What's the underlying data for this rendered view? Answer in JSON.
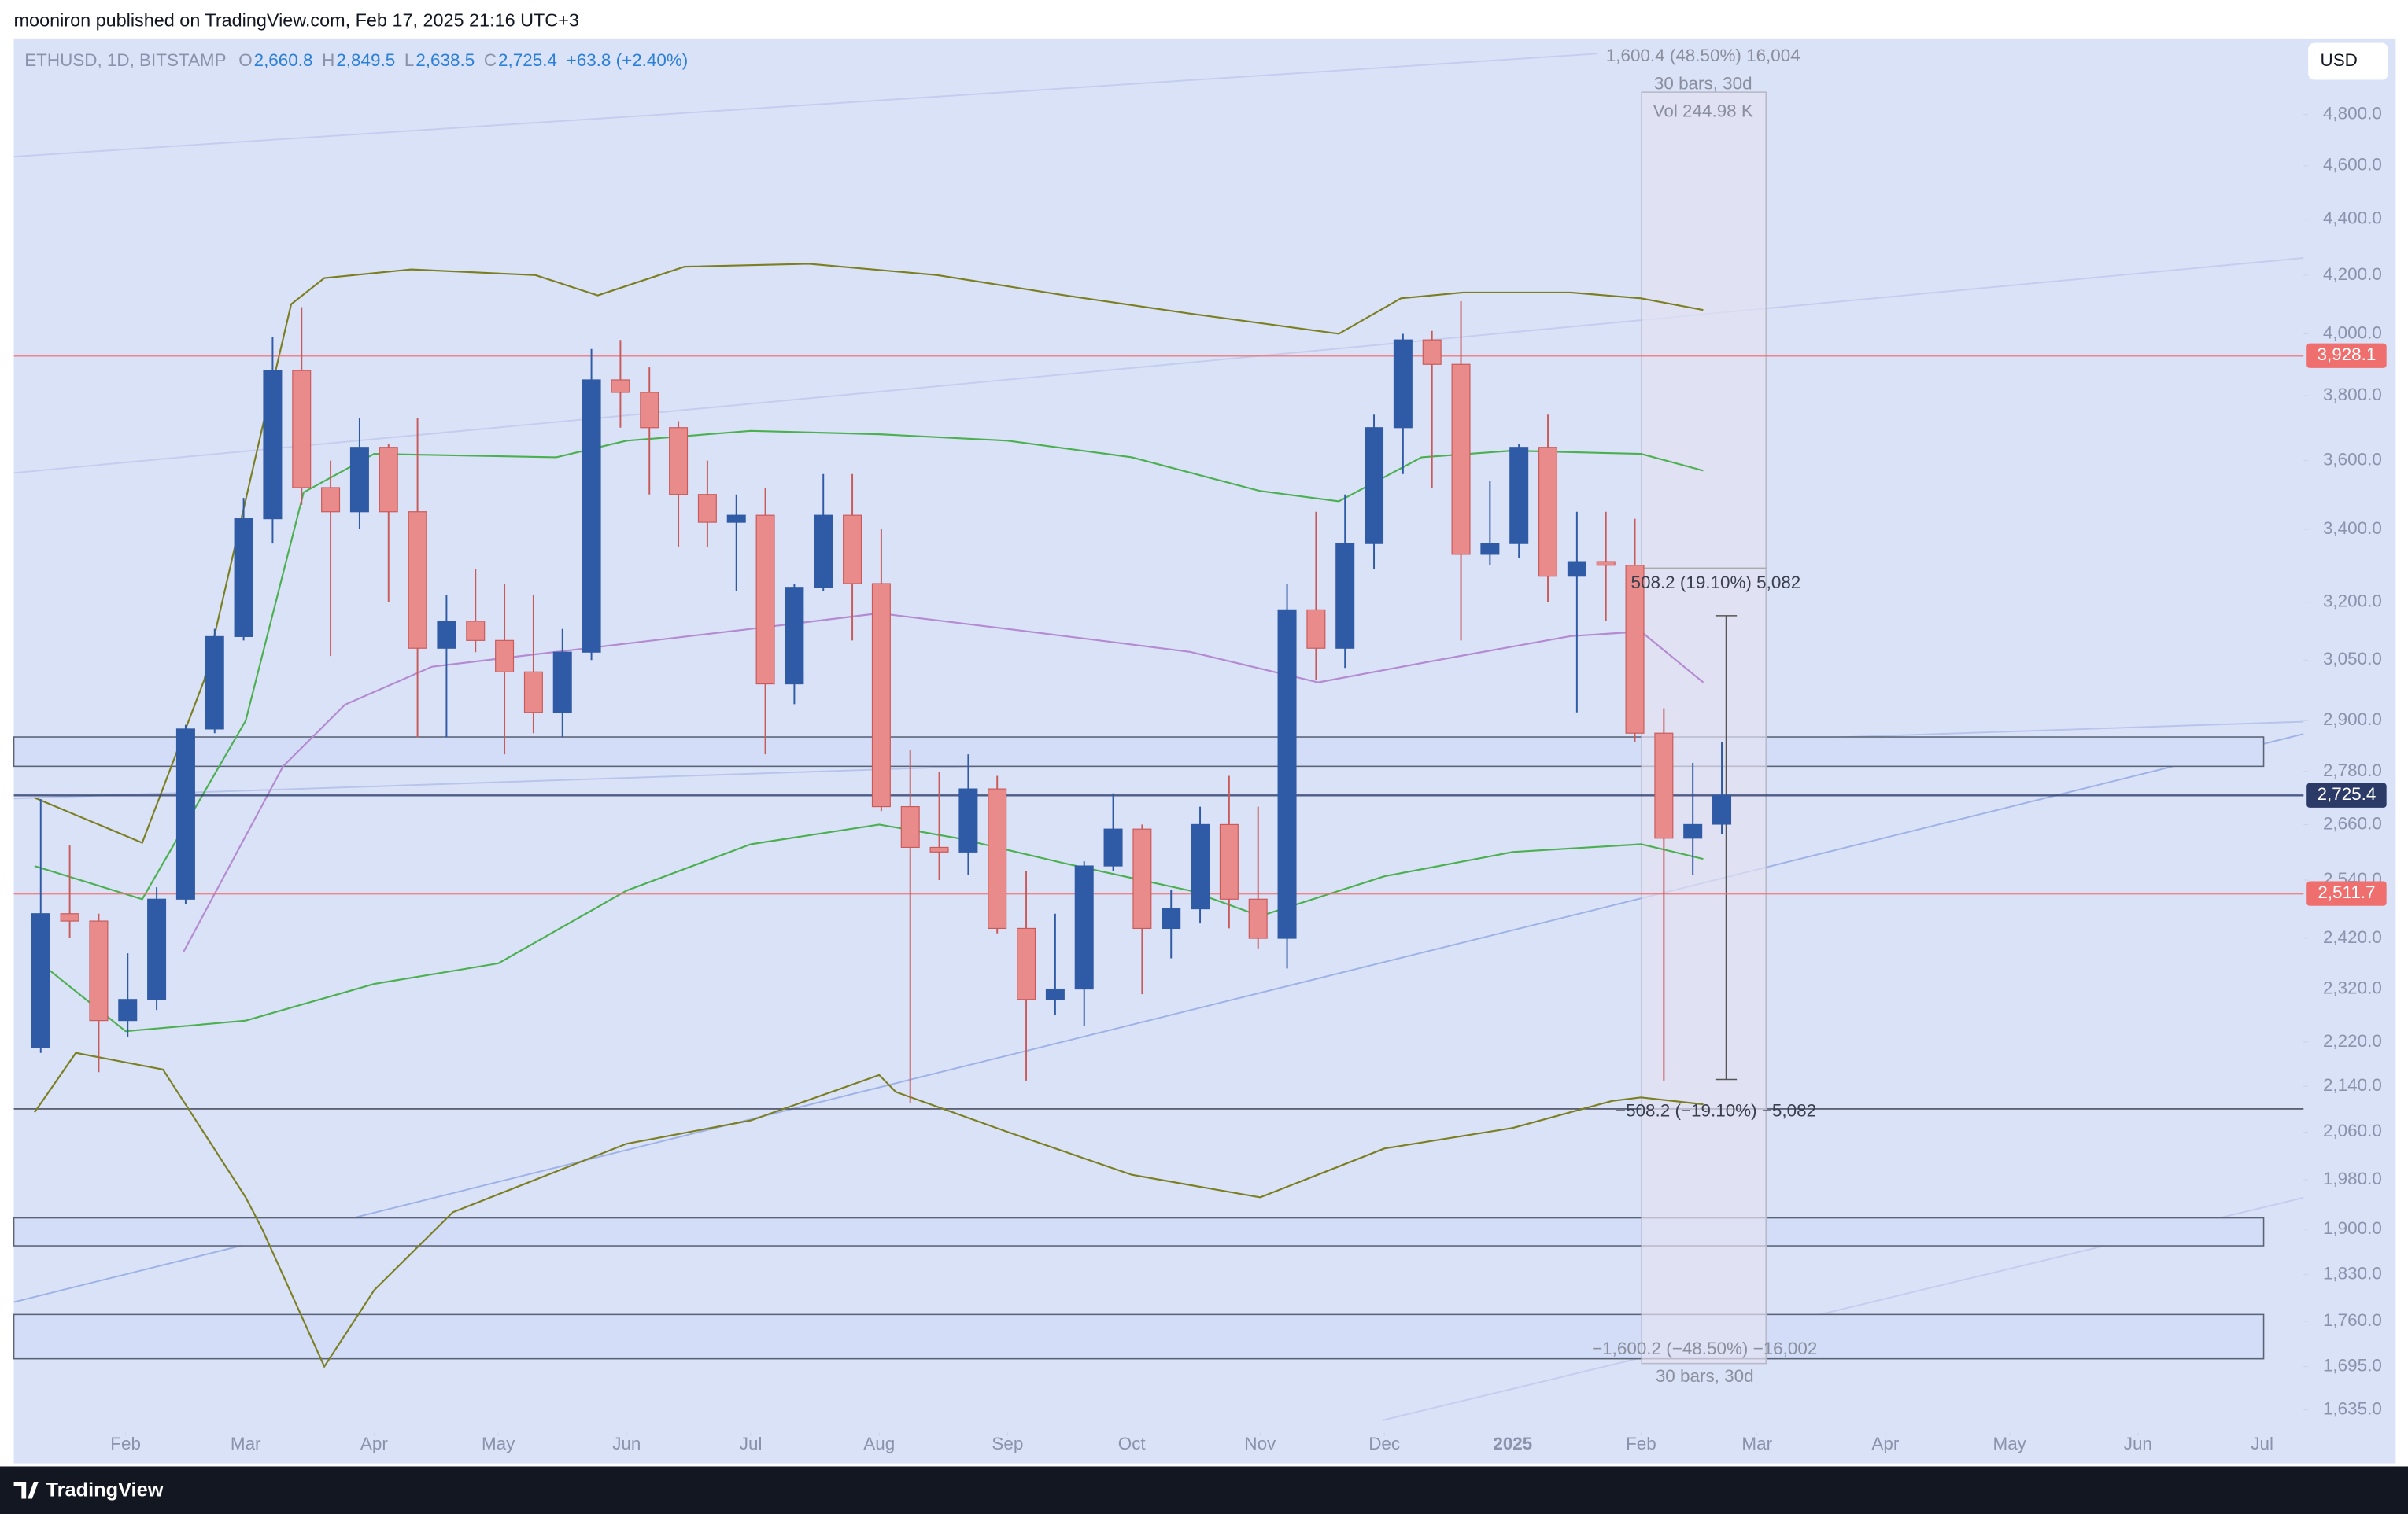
{
  "header": {
    "publisher": "mooniron published on TradingView.com, Feb 17, 2025 21:16 UTC+3"
  },
  "footer": {
    "brand": "TradingView"
  },
  "chart_data": {
    "type": "candlestick",
    "log_scale": true,
    "currency": "USD",
    "legend": {
      "symbol": "ETHUSD, 1D, BITSTAMP",
      "fields": [
        {
          "key": "O",
          "value": "2,660.8"
        },
        {
          "key": "H",
          "value": "2,849.5"
        },
        {
          "key": "L",
          "value": "2,638.5"
        },
        {
          "key": "C",
          "value": "2,725.4"
        }
      ],
      "change": "+63.8 (+2.40%)"
    },
    "up_color": "#2f5aa6",
    "down_color": "#e98b8b",
    "xlim": [
      "2024-01-05",
      "2025-07-11"
    ],
    "xticks": [
      {
        "value": "2024-02-01",
        "label": "Feb"
      },
      {
        "value": "2024-03-01",
        "label": "Mar"
      },
      {
        "value": "2024-04-01",
        "label": "Apr"
      },
      {
        "value": "2024-05-01",
        "label": "May"
      },
      {
        "value": "2024-06-01",
        "label": "Jun"
      },
      {
        "value": "2024-07-01",
        "label": "Jul"
      },
      {
        "value": "2024-08-01",
        "label": "Aug"
      },
      {
        "value": "2024-09-01",
        "label": "Sep"
      },
      {
        "value": "2024-10-01",
        "label": "Oct"
      },
      {
        "value": "2024-11-01",
        "label": "Nov"
      },
      {
        "value": "2024-12-01",
        "label": "Dec"
      },
      {
        "value": "2025-01-01",
        "label": "2025"
      },
      {
        "value": "2025-02-01",
        "label": "Feb"
      },
      {
        "value": "2025-03-01",
        "label": "Mar"
      },
      {
        "value": "2025-04-01",
        "label": "Apr"
      },
      {
        "value": "2025-05-01",
        "label": "May"
      },
      {
        "value": "2025-06-01",
        "label": "Jun"
      },
      {
        "value": "2025-07-01",
        "label": "Jul"
      }
    ],
    "ylim": [
      1564,
      5114
    ],
    "yticks": [
      {
        "value": 4800,
        "label": "4,800.0"
      },
      {
        "value": 4600,
        "label": "4,600.0"
      },
      {
        "value": 4400,
        "label": "4,400.0"
      },
      {
        "value": 4200,
        "label": "4,200.0"
      },
      {
        "value": 4000,
        "label": "4,000.0"
      },
      {
        "value": 3800,
        "label": "3,800.0"
      },
      {
        "value": 3600,
        "label": "3,600.0"
      },
      {
        "value": 3400,
        "label": "3,400.0"
      },
      {
        "value": 3200,
        "label": "3,200.0"
      },
      {
        "value": 3050,
        "label": "3,050.0"
      },
      {
        "value": 2900,
        "label": "2,900.0"
      },
      {
        "value": 2780,
        "label": "2,780.0"
      },
      {
        "value": 2660,
        "label": "2,660.0"
      },
      {
        "value": 2540,
        "label": "2,540.0"
      },
      {
        "value": 2420,
        "label": "2,420.0"
      },
      {
        "value": 2320,
        "label": "2,320.0"
      },
      {
        "value": 2220,
        "label": "2,220.0"
      },
      {
        "value": 2140,
        "label": "2,140.0"
      },
      {
        "value": 2060,
        "label": "2,060.0"
      },
      {
        "value": 1980,
        "label": "1,980.0"
      },
      {
        "value": 1900,
        "label": "1,900.0"
      },
      {
        "value": 1830,
        "label": "1,830.0"
      },
      {
        "value": 1760,
        "label": "1,760.0"
      },
      {
        "value": 1695,
        "label": "1,695.0"
      },
      {
        "value": 1635,
        "label": "1,635.0"
      }
    ],
    "candles": [
      {
        "x": "2024-01-08",
        "open": 2210,
        "high": 2717,
        "low": 2200,
        "close": 2470
      },
      {
        "x": "2024-01-15",
        "open": 2470,
        "high": 2614,
        "low": 2420,
        "close": 2455
      },
      {
        "x": "2024-01-22",
        "open": 2455,
        "high": 2470,
        "low": 2165,
        "close": 2260
      },
      {
        "x": "2024-01-29",
        "open": 2260,
        "high": 2390,
        "low": 2230,
        "close": 2300
      },
      {
        "x": "2024-02-05",
        "open": 2300,
        "high": 2525,
        "low": 2280,
        "close": 2500
      },
      {
        "x": "2024-02-12",
        "open": 2500,
        "high": 2890,
        "low": 2490,
        "close": 2880
      },
      {
        "x": "2024-02-19",
        "open": 2880,
        "high": 3130,
        "low": 2870,
        "close": 3110
      },
      {
        "x": "2024-02-26",
        "open": 3110,
        "high": 3490,
        "low": 3100,
        "close": 3430
      },
      {
        "x": "2024-03-04",
        "open": 3430,
        "high": 3990,
        "low": 3360,
        "close": 3880
      },
      {
        "x": "2024-03-11",
        "open": 3880,
        "high": 4090,
        "low": 3470,
        "close": 3520
      },
      {
        "x": "2024-03-18",
        "open": 3520,
        "high": 3600,
        "low": 3060,
        "close": 3450
      },
      {
        "x": "2024-03-25",
        "open": 3450,
        "high": 3730,
        "low": 3400,
        "close": 3640
      },
      {
        "x": "2024-04-01",
        "open": 3640,
        "high": 3650,
        "low": 3200,
        "close": 3450
      },
      {
        "x": "2024-04-08",
        "open": 3450,
        "high": 3730,
        "low": 2860,
        "close": 3080
      },
      {
        "x": "2024-04-15",
        "open": 3080,
        "high": 3220,
        "low": 2860,
        "close": 3150
      },
      {
        "x": "2024-04-22",
        "open": 3150,
        "high": 3290,
        "low": 3070,
        "close": 3100
      },
      {
        "x": "2024-04-29",
        "open": 3100,
        "high": 3250,
        "low": 2820,
        "close": 3020
      },
      {
        "x": "2024-05-06",
        "open": 3020,
        "high": 3220,
        "low": 2870,
        "close": 2920
      },
      {
        "x": "2024-05-13",
        "open": 2920,
        "high": 3130,
        "low": 2860,
        "close": 3070
      },
      {
        "x": "2024-05-20",
        "open": 3070,
        "high": 3950,
        "low": 3050,
        "close": 3850
      },
      {
        "x": "2024-05-27",
        "open": 3850,
        "high": 3980,
        "low": 3700,
        "close": 3810
      },
      {
        "x": "2024-06-03",
        "open": 3810,
        "high": 3890,
        "low": 3500,
        "close": 3700
      },
      {
        "x": "2024-06-10",
        "open": 3700,
        "high": 3720,
        "low": 3350,
        "close": 3500
      },
      {
        "x": "2024-06-17",
        "open": 3500,
        "high": 3600,
        "low": 3350,
        "close": 3420
      },
      {
        "x": "2024-06-24",
        "open": 3420,
        "high": 3500,
        "low": 3230,
        "close": 3440
      },
      {
        "x": "2024-07-01",
        "open": 3440,
        "high": 3520,
        "low": 2820,
        "close": 2990
      },
      {
        "x": "2024-07-08",
        "open": 2990,
        "high": 3250,
        "low": 2940,
        "close": 3240
      },
      {
        "x": "2024-07-15",
        "open": 3240,
        "high": 3560,
        "low": 3230,
        "close": 3440
      },
      {
        "x": "2024-07-22",
        "open": 3440,
        "high": 3560,
        "low": 3100,
        "close": 3250
      },
      {
        "x": "2024-07-29",
        "open": 3250,
        "high": 3400,
        "low": 2690,
        "close": 2700
      },
      {
        "x": "2024-08-05",
        "open": 2700,
        "high": 2830,
        "low": 2110,
        "close": 2610
      },
      {
        "x": "2024-08-12",
        "open": 2610,
        "high": 2780,
        "low": 2540,
        "close": 2600
      },
      {
        "x": "2024-08-19",
        "open": 2600,
        "high": 2820,
        "low": 2550,
        "close": 2740
      },
      {
        "x": "2024-08-26",
        "open": 2740,
        "high": 2770,
        "low": 2430,
        "close": 2440
      },
      {
        "x": "2024-09-02",
        "open": 2440,
        "high": 2560,
        "low": 2150,
        "close": 2300
      },
      {
        "x": "2024-09-09",
        "open": 2300,
        "high": 2470,
        "low": 2270,
        "close": 2320
      },
      {
        "x": "2024-09-16",
        "open": 2320,
        "high": 2580,
        "low": 2250,
        "close": 2570
      },
      {
        "x": "2024-09-23",
        "open": 2570,
        "high": 2730,
        "low": 2560,
        "close": 2650
      },
      {
        "x": "2024-09-30",
        "open": 2650,
        "high": 2660,
        "low": 2310,
        "close": 2440
      },
      {
        "x": "2024-10-07",
        "open": 2440,
        "high": 2520,
        "low": 2380,
        "close": 2480
      },
      {
        "x": "2024-10-14",
        "open": 2480,
        "high": 2700,
        "low": 2450,
        "close": 2660
      },
      {
        "x": "2024-10-21",
        "open": 2660,
        "high": 2770,
        "low": 2440,
        "close": 2500
      },
      {
        "x": "2024-10-28",
        "open": 2500,
        "high": 2700,
        "low": 2400,
        "close": 2420
      },
      {
        "x": "2024-11-04",
        "open": 2420,
        "high": 3250,
        "low": 2360,
        "close": 3180
      },
      {
        "x": "2024-11-11",
        "open": 3180,
        "high": 3450,
        "low": 3000,
        "close": 3080
      },
      {
        "x": "2024-11-18",
        "open": 3080,
        "high": 3500,
        "low": 3030,
        "close": 3360
      },
      {
        "x": "2024-11-25",
        "open": 3360,
        "high": 3740,
        "low": 3290,
        "close": 3700
      },
      {
        "x": "2024-12-02",
        "open": 3700,
        "high": 4000,
        "low": 3560,
        "close": 3980
      },
      {
        "x": "2024-12-09",
        "open": 3980,
        "high": 4010,
        "low": 3520,
        "close": 3900
      },
      {
        "x": "2024-12-16",
        "open": 3900,
        "high": 4110,
        "low": 3100,
        "close": 3330
      },
      {
        "x": "2024-12-23",
        "open": 3330,
        "high": 3540,
        "low": 3300,
        "close": 3360
      },
      {
        "x": "2024-12-30",
        "open": 3360,
        "high": 3650,
        "low": 3320,
        "close": 3640
      },
      {
        "x": "2025-01-06",
        "open": 3640,
        "high": 3740,
        "low": 3200,
        "close": 3270
      },
      {
        "x": "2025-01-13",
        "open": 3270,
        "high": 3450,
        "low": 2920,
        "close": 3310
      },
      {
        "x": "2025-01-20",
        "open": 3310,
        "high": 3450,
        "low": 3150,
        "close": 3300
      },
      {
        "x": "2025-01-27",
        "open": 3300,
        "high": 3430,
        "low": 2850,
        "close": 2870
      },
      {
        "x": "2025-02-03",
        "open": 2870,
        "high": 2930,
        "low": 2150,
        "close": 2630
      },
      {
        "x": "2025-02-10",
        "open": 2630,
        "high": 2800,
        "low": 2550,
        "close": 2660
      },
      {
        "x": "2025-02-17",
        "open": 2660.8,
        "high": 2849.5,
        "low": 2638.5,
        "close": 2725.4
      }
    ],
    "overlays": [
      {
        "color": "#7b7f22",
        "x": [
          "2024-01-10",
          "2024-02-05",
          "2024-02-20",
          "2024-03-05",
          "2024-03-12",
          "2024-03-20",
          "2024-04-10",
          "2024-05-10",
          "2024-05-25",
          "2024-06-15",
          "2024-07-15",
          "2024-08-15",
          "2024-09-15",
          "2024-10-15",
          "2024-11-20",
          "2024-12-05",
          "2024-12-20",
          "2025-01-15",
          "2025-02-01",
          "2025-02-16"
        ],
        "values": [
          2720,
          2620,
          3000,
          3700,
          4100,
          4190,
          4220,
          4200,
          4130,
          4230,
          4240,
          4200,
          4130,
          4068,
          4000,
          4120,
          4140,
          4140,
          4120,
          4080
        ]
      },
      {
        "color": "#7b7f22",
        "x": [
          "2024-01-10",
          "2024-01-20",
          "2024-02-10",
          "2024-03-01",
          "2024-03-05",
          "2024-03-20",
          "2024-04-01",
          "2024-04-20",
          "2024-06-01",
          "2024-07-01",
          "2024-08-01",
          "2024-08-05",
          "2024-09-01",
          "2024-10-01",
          "2024-11-01",
          "2024-12-01",
          "2025-01-01",
          "2025-01-25",
          "2025-02-01",
          "2025-02-16"
        ],
        "values": [
          2094,
          2200,
          2170,
          1951,
          1900,
          1695,
          1806,
          1927,
          2040,
          2080,
          2160,
          2130,
          2060,
          1988,
          1951,
          2032,
          2067,
          2114,
          2120,
          2108
        ]
      },
      {
        "color": "#4caf50",
        "x": [
          "2024-01-10",
          "2024-02-05",
          "2024-03-01",
          "2024-03-15",
          "2024-04-01",
          "2024-05-15",
          "2024-06-01",
          "2024-07-01",
          "2024-08-01",
          "2024-09-01",
          "2024-10-01",
          "2024-11-01",
          "2024-11-20",
          "2024-12-10",
          "2025-01-01",
          "2025-02-01",
          "2025-02-16"
        ],
        "values": [
          2570,
          2500,
          2900,
          3506,
          3620,
          3610,
          3660,
          3690,
          3680,
          3660,
          3610,
          3510,
          3480,
          3610,
          3630,
          3620,
          3570
        ]
      },
      {
        "color": "#4caf50",
        "x": [
          "2024-01-10",
          "2024-02-01",
          "2024-03-01",
          "2024-04-01",
          "2024-05-01",
          "2024-06-01",
          "2024-07-01",
          "2024-08-01",
          "2024-08-20",
          "2024-09-15",
          "2024-10-15",
          "2024-11-01",
          "2024-12-01",
          "2025-01-01",
          "2025-02-01",
          "2025-02-16"
        ],
        "values": [
          2380,
          2240,
          2260,
          2330,
          2370,
          2518,
          2617,
          2660,
          2630,
          2575,
          2518,
          2465,
          2548,
          2600,
          2617,
          2585
        ]
      },
      {
        "color": "#b48ad0",
        "x": [
          "2024-02-15",
          "2024-03-10",
          "2024-03-25",
          "2024-04-15",
          "2024-05-15",
          "2024-07-01",
          "2024-08-01",
          "2024-09-01",
          "2024-10-15",
          "2024-11-15",
          "2024-12-15",
          "2025-01-15",
          "2025-02-01",
          "2025-02-16"
        ],
        "values": [
          2393,
          2792,
          2939,
          3033,
          3071,
          3130,
          3171,
          3130,
          3071,
          2994,
          3052,
          3111,
          3123,
          2994
        ]
      }
    ],
    "price_lines": [
      {
        "value": 3928.1,
        "label": "3,928.1",
        "color": "#ef6f6f"
      },
      {
        "value": 2725.4,
        "label": "2,725.4",
        "color": "#2b3a67"
      },
      {
        "value": 2511.7,
        "label": "2,511.7",
        "color": "#ef6f6f"
      }
    ],
    "zones": [
      {
        "from": 2792,
        "to": 2861
      },
      {
        "from": 1874,
        "to": 1918
      },
      {
        "from": 1706,
        "to": 1770
      }
    ],
    "levels": [
      2100
    ],
    "annotations": [
      "1,600.4 (48.50%) 16,004",
      "30 bars, 30d",
      "Vol 244.98 K",
      "508.2 (19.10%) 5,082",
      "−508.2 (−19.10%) −5,082",
      "−1,600.2 (−48.50%) −16,002",
      "30 bars, 30d"
    ]
  }
}
